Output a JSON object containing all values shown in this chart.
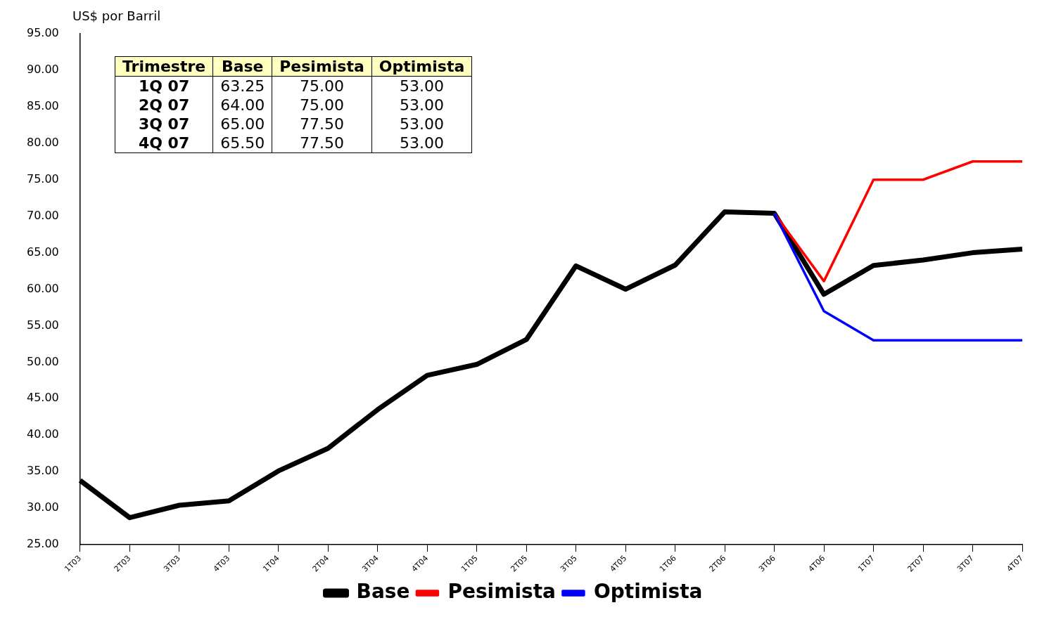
{
  "chart_data": {
    "type": "line",
    "ylabel": "US$ por Barril",
    "categories": [
      "1T03",
      "2T03",
      "3T03",
      "4T03",
      "1T04",
      "2T04",
      "3T04",
      "4T04",
      "1T05",
      "2T05",
      "3T05",
      "4T05",
      "1T06",
      "2T06",
      "3T06",
      "4T06",
      "1T07",
      "2T07",
      "3T07",
      "4T07"
    ],
    "series": [
      {
        "name": "Base",
        "color": "#000000",
        "values": [
          33.8,
          28.7,
          30.4,
          31.0,
          35.1,
          38.2,
          43.5,
          48.2,
          49.7,
          53.1,
          63.2,
          60.0,
          63.3,
          70.6,
          70.4,
          59.3,
          63.25,
          64.0,
          65.0,
          65.5
        ]
      },
      {
        "name": "Pesimista",
        "color": "#ff0000",
        "values": [
          null,
          null,
          null,
          null,
          null,
          null,
          null,
          null,
          null,
          null,
          null,
          null,
          null,
          null,
          70.4,
          61.1,
          75.0,
          75.0,
          77.5,
          77.5
        ]
      },
      {
        "name": "Optimista",
        "color": "#0000ff",
        "values": [
          null,
          null,
          null,
          null,
          null,
          null,
          null,
          null,
          null,
          null,
          null,
          null,
          null,
          null,
          70.4,
          57.0,
          53.0,
          53.0,
          53.0,
          53.0
        ]
      }
    ],
    "ylim": [
      25,
      95
    ],
    "yticks": [
      {
        "value": 25,
        "label": "25.00"
      },
      {
        "value": 30,
        "label": "30.00"
      },
      {
        "value": 35,
        "label": "35.00"
      },
      {
        "value": 40,
        "label": "40.00"
      },
      {
        "value": 45,
        "label": "45.00"
      },
      {
        "value": 50,
        "label": "50.00"
      },
      {
        "value": 55,
        "label": "55.00"
      },
      {
        "value": 60,
        "label": "60.00"
      },
      {
        "value": 65,
        "label": "65.00"
      },
      {
        "value": 70,
        "label": "70.00"
      },
      {
        "value": 75,
        "label": "75.00"
      },
      {
        "value": 80,
        "label": "80.00"
      },
      {
        "value": 85,
        "label": "85.00"
      },
      {
        "value": 90,
        "label": "90.00"
      },
      {
        "value": 95,
        "label": "95.00"
      }
    ],
    "annotations": [
      "Trimestre",
      "Base",
      "Pesimista",
      "Optimista",
      "1Q 07",
      "63.25",
      "75.00",
      "53.00",
      "2Q 07",
      "64.00",
      "75.00",
      "53.00",
      "3Q 07",
      "65.00",
      "77.50",
      "53.00",
      "4Q 07",
      "65.50",
      "77.50",
      "53.00"
    ],
    "grid": false,
    "legend": "bottom",
    "marker": "none",
    "line_style": "solid"
  }
}
